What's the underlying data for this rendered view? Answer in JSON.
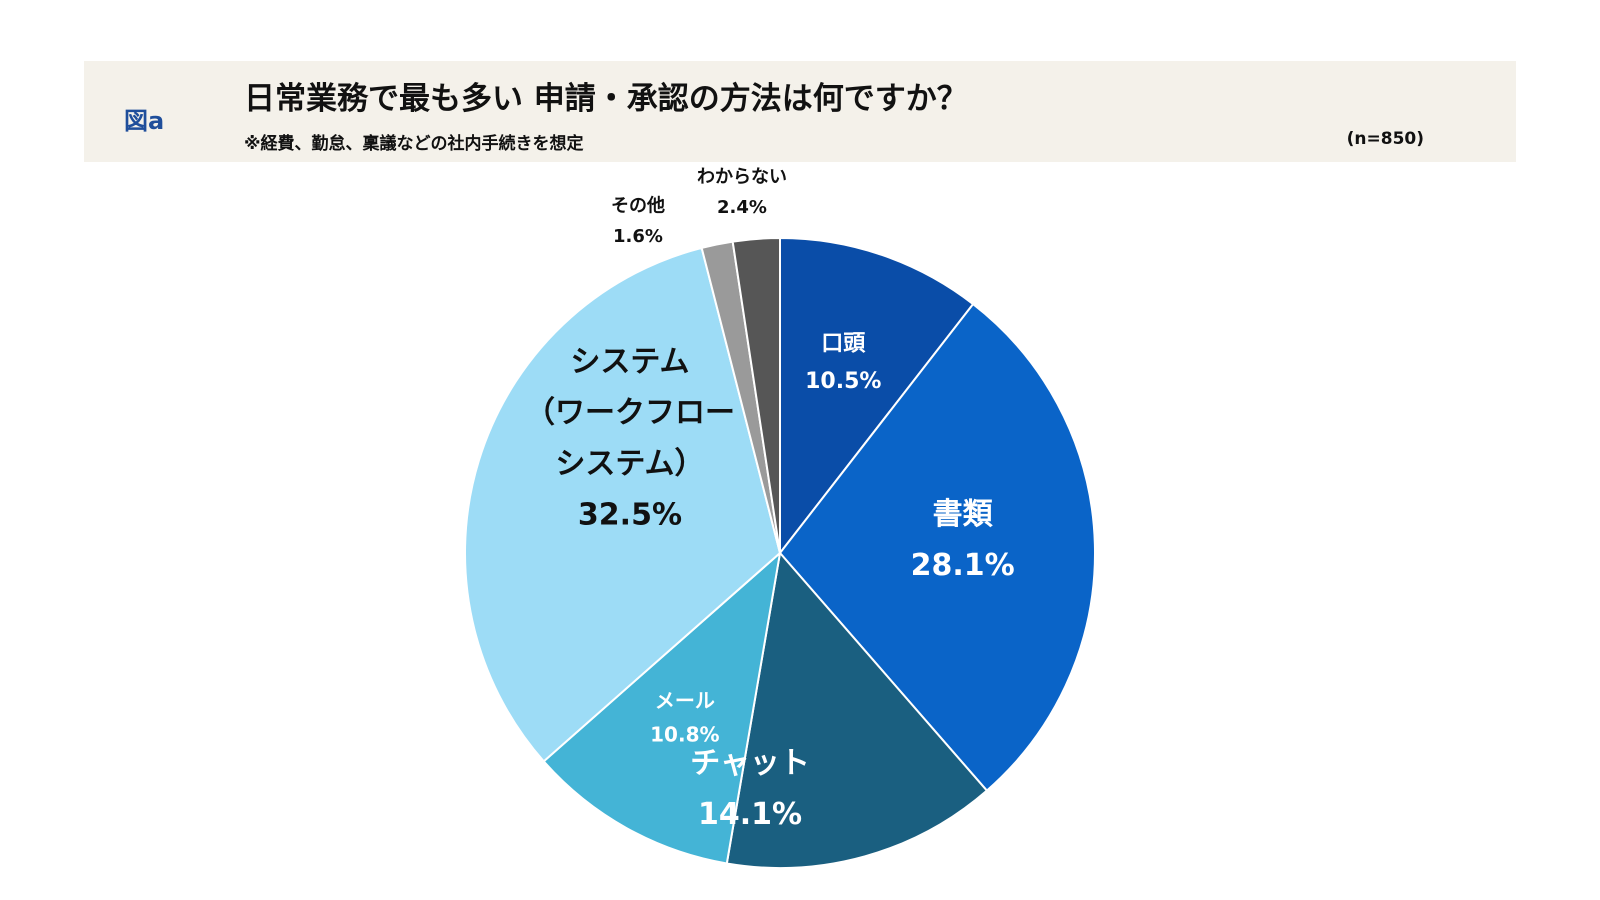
{
  "header": {
    "fig_label": "図a",
    "title": "日常業務で最も多い 申請・承認の方法は何ですか？",
    "subtitle": "※経費、勤怠、稟議などの社内手続きを想定",
    "sample_size": "(n=850)"
  },
  "chart_data": {
    "type": "pie",
    "title": "日常業務で最も多い 申請・承認の方法は何ですか？",
    "subtitle": "※経費、勤怠、稟議などの社内手続きを想定",
    "start": "12 o'clock",
    "direction": "clockwise",
    "slices": [
      {
        "label": "口頭",
        "value": 10.5,
        "value_label": "10.5%",
        "color": "#0a4da8",
        "label_color": "#ffffff"
      },
      {
        "label": "書類",
        "value": 28.1,
        "value_label": "28.1%",
        "color": "#0a64c8",
        "label_color": "#ffffff"
      },
      {
        "label": "チャット",
        "value": 14.1,
        "value_label": "14.1%",
        "color": "#1a5f80",
        "label_color": "#ffffff"
      },
      {
        "label": "メール",
        "value": 10.8,
        "value_label": "10.8%",
        "color": "#44b4d6",
        "label_color": "#ffffff"
      },
      {
        "label": "システム（ワークフローシステム）",
        "label_lines": [
          "システム",
          "（ワークフロー",
          "システム）"
        ],
        "value": 32.5,
        "value_label": "32.5%",
        "color": "#9ddcf6",
        "label_color": "#111111"
      },
      {
        "label": "その他",
        "value": 1.6,
        "value_label": "1.6%",
        "color": "#9a9a9a",
        "label_color": "#111111"
      },
      {
        "label": "わからない",
        "value": 2.4,
        "value_label": "2.4%",
        "color": "#565656",
        "label_color": "#111111"
      }
    ]
  }
}
